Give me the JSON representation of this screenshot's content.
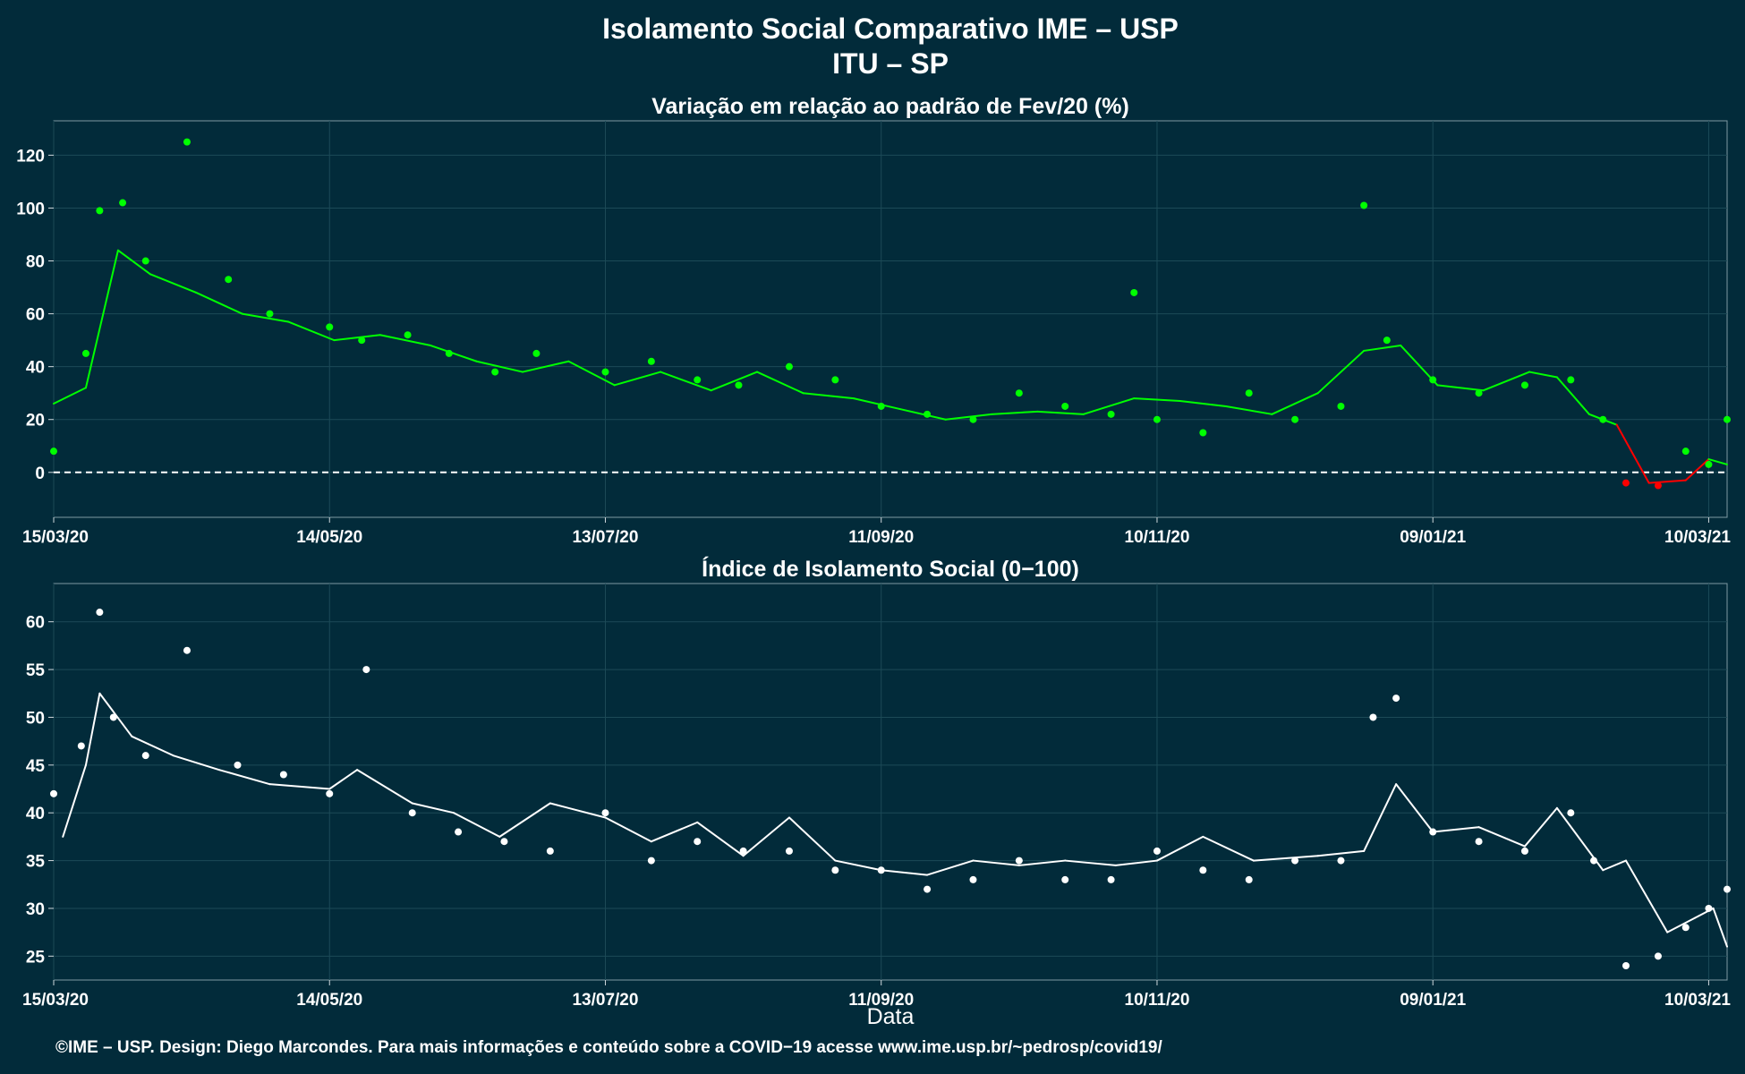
{
  "title_line1": "Isolamento Social Comparativo IME – USP",
  "title_line2": "ITU – SP",
  "xlabel": "Data",
  "footer": "©IME – USP. Design: Diego Marcondes. Para mais informações e conteúdo sobre a COVID−19 acesse www.ime.usp.br/~pedrosp/covid19/",
  "colors": {
    "background": "#022b3a",
    "positive": "#00ff00",
    "negative": "#ff0000",
    "index": "#ffffff",
    "zero_line": "#ffffff"
  },
  "chart_data": [
    {
      "type": "scatter",
      "title": "Variação em relação ao padrão de Fev/20 (%)",
      "x_ticks": [
        "15/03/20",
        "14/05/20",
        "13/07/20",
        "11/09/20",
        "10/11/20",
        "09/01/21",
        "10/03/21"
      ],
      "y_ticks": [
        0,
        20,
        40,
        60,
        80,
        100,
        120
      ],
      "ylim": [
        -17,
        133
      ],
      "reference_line": 0,
      "grid": true,
      "series": [
        {
          "kind": "points",
          "x": [
            "15/03/20",
            "22/03/20",
            "25/03/20",
            "30/03/20",
            "04/04/20",
            "13/04/20",
            "22/04/20",
            "01/05/20",
            "14/05/20",
            "21/05/20",
            "31/05/20",
            "09/06/20",
            "19/06/20",
            "28/06/20",
            "13/07/20",
            "23/07/20",
            "02/08/20",
            "11/08/20",
            "22/08/20",
            "01/09/20",
            "11/09/20",
            "21/09/20",
            "01/10/20",
            "11/10/20",
            "21/10/20",
            "31/10/20",
            "05/11/20",
            "10/11/20",
            "20/11/20",
            "30/11/20",
            "10/12/20",
            "20/12/20",
            "25/12/20",
            "30/12/20",
            "09/01/21",
            "19/01/21",
            "29/01/21",
            "08/02/21",
            "15/02/21",
            "20/02/21",
            "27/02/21",
            "05/03/21",
            "10/03/21",
            "14/03/21"
          ],
          "y": [
            8,
            45,
            99,
            102,
            80,
            125,
            73,
            60,
            55,
            50,
            52,
            45,
            38,
            45,
            38,
            42,
            35,
            33,
            40,
            35,
            25,
            22,
            20,
            30,
            25,
            22,
            68,
            20,
            15,
            30,
            20,
            25,
            101,
            50,
            35,
            30,
            33,
            35,
            20,
            -4,
            -5,
            8,
            3,
            20
          ]
        },
        {
          "kind": "moving_average",
          "x": [
            "15/03/20",
            "22/03/20",
            "29/03/20",
            "05/04/20",
            "15/04/20",
            "25/04/20",
            "05/05/20",
            "15/05/20",
            "25/05/20",
            "05/06/20",
            "15/06/20",
            "25/06/20",
            "05/07/20",
            "15/07/20",
            "25/07/20",
            "05/08/20",
            "15/08/20",
            "25/08/20",
            "05/09/20",
            "15/09/20",
            "25/09/20",
            "05/10/20",
            "15/10/20",
            "25/10/20",
            "05/11/20",
            "15/11/20",
            "25/11/20",
            "05/12/20",
            "15/12/20",
            "25/12/20",
            "02/01/21",
            "10/01/21",
            "20/01/21",
            "30/01/21",
            "05/02/21",
            "12/02/21",
            "18/02/21",
            "25/02/21",
            "05/03/21",
            "10/03/21",
            "14/03/21"
          ],
          "y": [
            26,
            32,
            84,
            75,
            68,
            60,
            57,
            50,
            52,
            48,
            42,
            38,
            42,
            33,
            38,
            31,
            38,
            30,
            28,
            24,
            20,
            22,
            23,
            22,
            28,
            27,
            25,
            22,
            30,
            46,
            48,
            33,
            31,
            38,
            36,
            22,
            18,
            -4,
            -3,
            5,
            3
          ]
        }
      ]
    },
    {
      "type": "scatter",
      "title": "Índice de Isolamento Social (0−100)",
      "x_ticks": [
        "15/03/20",
        "14/05/20",
        "13/07/20",
        "11/09/20",
        "10/11/20",
        "09/01/21",
        "10/03/21"
      ],
      "y_ticks": [
        25,
        30,
        35,
        40,
        45,
        50,
        55,
        60
      ],
      "ylim": [
        22.5,
        64
      ],
      "grid": true,
      "series": [
        {
          "kind": "points",
          "x": [
            "15/03/20",
            "21/03/20",
            "25/03/20",
            "28/03/20",
            "04/04/20",
            "13/04/20",
            "24/04/20",
            "04/05/20",
            "14/05/20",
            "22/05/20",
            "01/06/20",
            "11/06/20",
            "21/06/20",
            "01/07/20",
            "13/07/20",
            "23/07/20",
            "02/08/20",
            "12/08/20",
            "22/08/20",
            "01/09/20",
            "11/09/20",
            "21/09/20",
            "01/10/20",
            "11/10/20",
            "21/10/20",
            "31/10/20",
            "10/11/20",
            "20/11/20",
            "30/11/20",
            "10/12/20",
            "20/12/20",
            "27/12/20",
            "01/01/21",
            "09/01/21",
            "19/01/21",
            "29/01/21",
            "08/02/21",
            "13/02/21",
            "20/02/21",
            "27/02/21",
            "05/03/21",
            "10/03/21",
            "14/03/21"
          ],
          "y": [
            42,
            47,
            61,
            50,
            46,
            57,
            45,
            44,
            42,
            55,
            40,
            38,
            37,
            36,
            40,
            35,
            37,
            36,
            36,
            34,
            34,
            32,
            33,
            35,
            33,
            33,
            36,
            34,
            33,
            35,
            35,
            50,
            52,
            38,
            37,
            36,
            40,
            35,
            24,
            25,
            28,
            30,
            32
          ]
        },
        {
          "kind": "moving_average",
          "x": [
            "17/03/20",
            "22/03/20",
            "25/03/20",
            "01/04/20",
            "10/04/20",
            "20/04/20",
            "01/05/20",
            "14/05/20",
            "20/05/20",
            "01/06/20",
            "10/06/20",
            "20/06/20",
            "01/07/20",
            "13/07/20",
            "23/07/20",
            "02/08/20",
            "12/08/20",
            "22/08/20",
            "01/09/20",
            "11/09/20",
            "21/09/20",
            "01/10/20",
            "11/10/20",
            "21/10/20",
            "01/11/20",
            "10/11/20",
            "20/11/20",
            "01/12/20",
            "15/12/20",
            "25/12/20",
            "01/01/21",
            "09/01/21",
            "19/01/21",
            "29/01/21",
            "05/02/21",
            "15/02/21",
            "20/02/21",
            "01/03/21",
            "07/03/21",
            "11/03/21",
            "14/03/21"
          ],
          "y": [
            37.5,
            45,
            52.5,
            48,
            46,
            44.5,
            43,
            42.5,
            44.5,
            41,
            40,
            37.5,
            41,
            39.5,
            37,
            39,
            35.5,
            39.5,
            35,
            34,
            33.5,
            35,
            34.5,
            35,
            34.5,
            35,
            37.5,
            35,
            35.5,
            36,
            43,
            38,
            38.5,
            36.5,
            40.5,
            34,
            35,
            27.5,
            29,
            30,
            26
          ]
        }
      ]
    }
  ]
}
